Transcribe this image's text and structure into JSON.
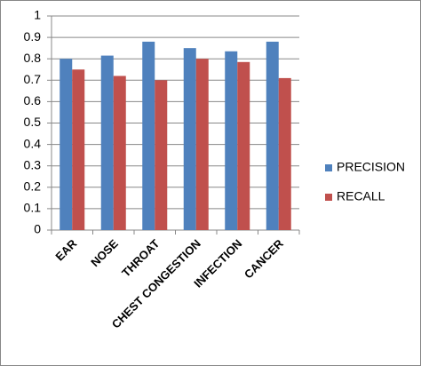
{
  "chart_data": {
    "type": "bar",
    "categories": [
      "EAR",
      "NOSE",
      "THROAT",
      "CHEST CONGESTION",
      "INFECTION",
      "CANCER"
    ],
    "series": [
      {
        "name": "PRECISION",
        "color": "#4f81bd",
        "values": [
          0.8,
          0.815,
          0.88,
          0.85,
          0.835,
          0.88
        ]
      },
      {
        "name": "RECALL",
        "color": "#c0504d",
        "values": [
          0.75,
          0.72,
          0.7,
          0.8,
          0.785,
          0.71
        ]
      }
    ],
    "ylim": [
      0,
      1
    ],
    "yticks": [
      0,
      0.1,
      0.2,
      0.3,
      0.4,
      0.5,
      0.6,
      0.7,
      0.8,
      0.9,
      1
    ],
    "grid": true,
    "legend": "right"
  }
}
